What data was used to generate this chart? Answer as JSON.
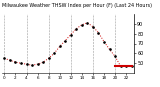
{
  "title": "Milwaukee Weather THSW Index per Hour (F) (Last 24 Hours)",
  "hours": [
    0,
    1,
    2,
    3,
    4,
    5,
    6,
    7,
    8,
    9,
    10,
    11,
    12,
    13,
    14,
    15,
    16,
    17,
    18,
    19,
    20,
    21,
    22,
    23
  ],
  "values": [
    55,
    53,
    51,
    50,
    49,
    48,
    49,
    51,
    55,
    60,
    67,
    73,
    79,
    85,
    89,
    91,
    87,
    81,
    72,
    64,
    57,
    47,
    47,
    47
  ],
  "flat_start_idx": 20,
  "flat_value": 47,
  "bg_color": "#ffffff",
  "line_color": "#cc0000",
  "dot_color": "#000000",
  "flat_color": "#cc0000",
  "grid_color": "#999999",
  "title_color": "#000000",
  "ylim_min": 40,
  "ylim_max": 100,
  "yticks": [
    50,
    60,
    70,
    80,
    90
  ],
  "ytick_labels": [
    "50",
    "60",
    "70",
    "80",
    "90"
  ],
  "grid_hours": [
    0,
    4,
    8,
    12,
    16,
    20
  ],
  "xtick_hours": [
    0,
    2,
    4,
    6,
    8,
    10,
    12,
    14,
    16,
    18,
    20,
    22
  ],
  "title_fontsize": 3.5,
  "ytick_fontsize": 3.5,
  "xtick_fontsize": 3.0
}
